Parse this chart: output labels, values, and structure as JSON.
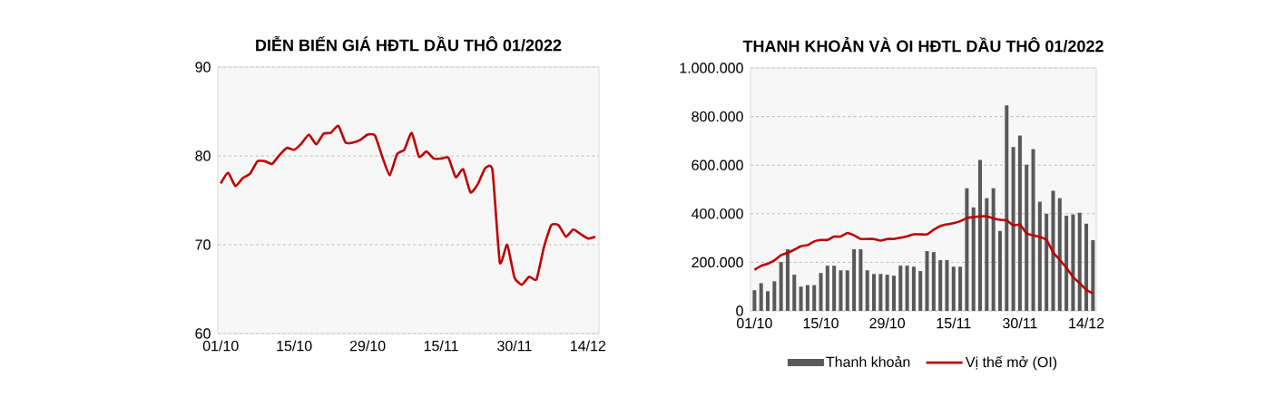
{
  "chart_data": [
    {
      "type": "line",
      "title": "DIỄN BIẾN GIÁ HĐTL DẦU THÔ 01/2022",
      "categories": [
        "01/10",
        null,
        null,
        null,
        null,
        null,
        null,
        null,
        null,
        null,
        "15/10",
        null,
        null,
        null,
        null,
        null,
        null,
        null,
        null,
        null,
        "29/10",
        null,
        null,
        null,
        null,
        null,
        null,
        null,
        null,
        null,
        "15/11",
        null,
        null,
        null,
        null,
        null,
        null,
        null,
        null,
        null,
        "30/11",
        null,
        null,
        null,
        null,
        null,
        null,
        null,
        null,
        null,
        "14/12",
        null
      ],
      "series": [
        {
          "color": "#c00000",
          "values": [
            76.9,
            78.1,
            76.6,
            77.5,
            78.0,
            79.4,
            79.4,
            79.1,
            80.1,
            80.9,
            80.7,
            81.4,
            82.4,
            81.3,
            82.5,
            82.6,
            83.4,
            81.5,
            81.5,
            81.8,
            82.4,
            82.3,
            79.9,
            77.8,
            80.2,
            80.7,
            82.6,
            79.9,
            80.5,
            79.7,
            79.7,
            79.8,
            77.6,
            78.5,
            75.9,
            76.8,
            78.6,
            78.4,
            68.0,
            70.0,
            66.3,
            65.5,
            66.4,
            66.1,
            69.7,
            72.2,
            72.2,
            70.9,
            71.7,
            71.2,
            70.7,
            70.9
          ]
        }
      ],
      "ylim": [
        60,
        90
      ],
      "yticks": [
        60,
        70,
        80,
        90
      ],
      "grid": "y",
      "legend": false
    },
    {
      "type": "bar",
      "title": "THANH KHOẢN VÀ OI HĐTL DẦU THÔ 01/2022",
      "categories": [
        "01/10",
        null,
        null,
        null,
        null,
        null,
        null,
        null,
        null,
        null,
        "15/10",
        null,
        null,
        null,
        null,
        null,
        null,
        null,
        null,
        null,
        "29/10",
        null,
        null,
        null,
        null,
        null,
        null,
        null,
        null,
        null,
        "15/11",
        null,
        null,
        null,
        null,
        null,
        null,
        null,
        null,
        null,
        "30/11",
        null,
        null,
        null,
        null,
        null,
        null,
        null,
        null,
        null,
        "14/12",
        null
      ],
      "series": [
        {
          "name": "Thanh khoản",
          "color": "#595959",
          "values": [
            85000,
            114000,
            81000,
            122000,
            201000,
            254000,
            149000,
            100000,
            106000,
            106000,
            156000,
            186000,
            186000,
            167000,
            167000,
            254000,
            254000,
            167000,
            152000,
            152000,
            149000,
            145000,
            186000,
            186000,
            182000,
            164000,
            246000,
            242000,
            209000,
            209000,
            182000,
            182000,
            505000,
            426000,
            621000,
            464000,
            505000,
            329000,
            846000,
            674000,
            722000,
            602000,
            666000,
            449000,
            400000,
            494000,
            464000,
            392000,
            397000,
            404000,
            359000,
            291000
          ]
        },
        {
          "type": "line",
          "name": "Vị thế mở (OI)",
          "color": "#c00000",
          "values": [
            169000,
            185000,
            194000,
            208000,
            229000,
            239000,
            252000,
            266000,
            271000,
            286000,
            292000,
            292000,
            306000,
            306000,
            321000,
            311000,
            296000,
            296000,
            296000,
            289000,
            296000,
            296000,
            301000,
            307000,
            315000,
            315000,
            315000,
            334000,
            349000,
            356000,
            361000,
            369000,
            382000,
            386000,
            389000,
            389000,
            381000,
            375000,
            372000,
            352000,
            355000,
            319000,
            311000,
            304000,
            292000,
            241000,
            210000,
            177000,
            140000,
            114000,
            87000,
            72000
          ]
        }
      ],
      "ylim": [
        0,
        1000000
      ],
      "yticks": [
        0,
        {
          "value": 200000,
          "label": "200.000"
        },
        {
          "value": 400000,
          "label": "400.000"
        },
        {
          "value": 600000,
          "label": "600.000"
        },
        {
          "value": 800000,
          "label": "800.000"
        },
        {
          "value": 1000000,
          "label": "1.000.000"
        }
      ],
      "grid": "y",
      "legend": "bottom"
    }
  ]
}
